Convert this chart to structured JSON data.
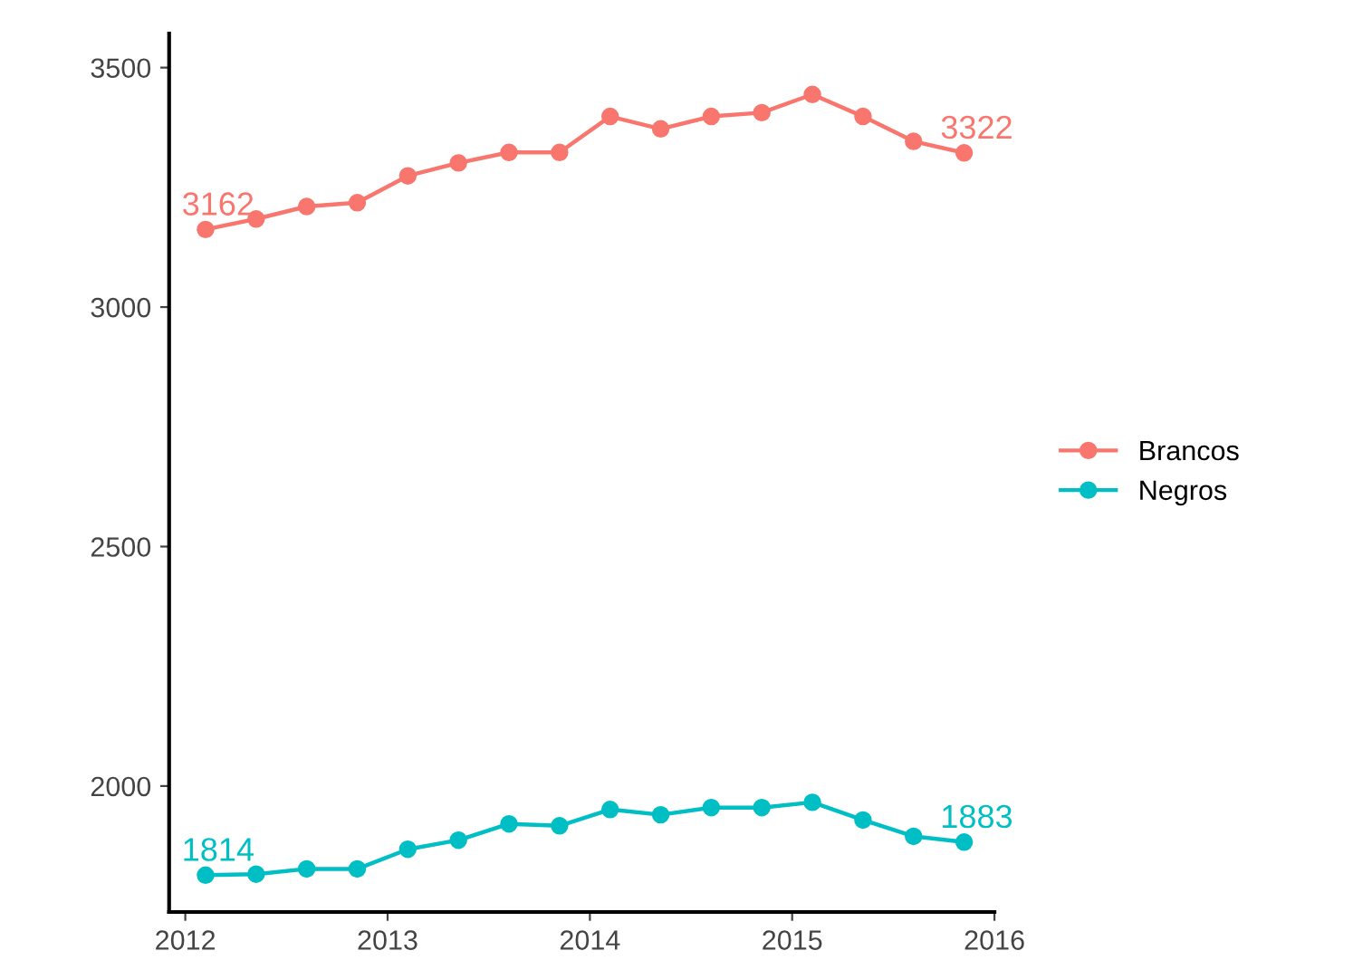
{
  "chart_data": {
    "type": "line",
    "x": [
      2012.1,
      2012.35,
      2012.6,
      2012.85,
      2013.1,
      2013.35,
      2013.6,
      2013.85,
      2014.1,
      2014.35,
      2014.6,
      2014.85,
      2015.1,
      2015.35,
      2015.6,
      2015.85
    ],
    "series": [
      {
        "name": "Brancos",
        "color": "#f8766d",
        "values": [
          3162,
          3184,
          3210,
          3218,
          3274,
          3301,
          3323,
          3323,
          3398,
          3372,
          3398,
          3406,
          3444,
          3398,
          3346,
          3322
        ],
        "value_labels": [
          "3162",
          null,
          null,
          null,
          null,
          null,
          null,
          null,
          null,
          null,
          null,
          null,
          null,
          null,
          null,
          "3322"
        ]
      },
      {
        "name": "Negros",
        "color": "#00bfc4",
        "values": [
          1814,
          1816,
          1827,
          1827,
          1868,
          1887,
          1921,
          1917,
          1951,
          1940,
          1955,
          1955,
          1966,
          1929,
          1895,
          1883
        ],
        "value_labels": [
          "1814",
          null,
          null,
          null,
          null,
          null,
          null,
          null,
          null,
          null,
          null,
          null,
          null,
          null,
          null,
          "1883"
        ]
      }
    ],
    "xlim": [
      2011.92,
      2016
    ],
    "xticks": [
      2012,
      2013,
      2014,
      2015,
      2016
    ],
    "ylim": [
      1737,
      3571
    ],
    "yticks": [
      2000,
      2500,
      3000,
      3500
    ],
    "grid": false,
    "legend": "right",
    "marker": "circle",
    "line_style": "solid"
  }
}
